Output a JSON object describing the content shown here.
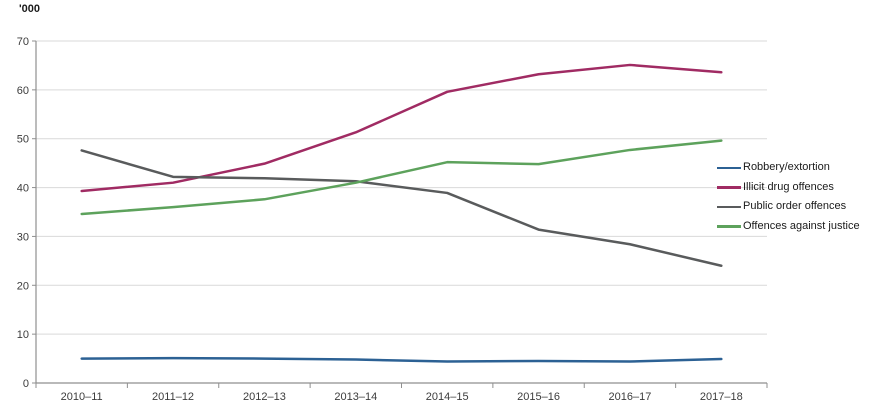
{
  "chart_data": {
    "type": "line",
    "unit_label": "'000",
    "categories": [
      "2010–11",
      "2011–12",
      "2012–13",
      "2013–14",
      "2014–15",
      "2015–16",
      "2016–17",
      "2017–18"
    ],
    "series": [
      {
        "name": "Robbery/extortion",
        "color": "#2c6194",
        "values": [
          5.0,
          5.1,
          5.0,
          4.8,
          4.4,
          4.5,
          4.4,
          4.9
        ]
      },
      {
        "name": "Illicit drug offences",
        "color": "#a02b63",
        "values": [
          39.3,
          41.0,
          44.9,
          51.3,
          59.6,
          63.2,
          65.1,
          63.6
        ]
      },
      {
        "name": "Public order offences",
        "color": "#595b5c",
        "values": [
          47.6,
          42.2,
          41.9,
          41.3,
          38.9,
          31.4,
          28.4,
          24.0
        ]
      },
      {
        "name": "Offences against justice",
        "color": "#5da25c",
        "values": [
          34.6,
          36.0,
          37.6,
          41.0,
          45.2,
          44.8,
          47.7,
          49.6
        ]
      }
    ],
    "ylim": [
      0,
      70
    ],
    "ytick_step": 10,
    "grid": true,
    "legend_position": "right"
  },
  "colors": {
    "gridline": "#d9d9d9",
    "axis": "#8f8f8f",
    "tick_text": "#3c3c3c",
    "background": "#ffffff"
  }
}
